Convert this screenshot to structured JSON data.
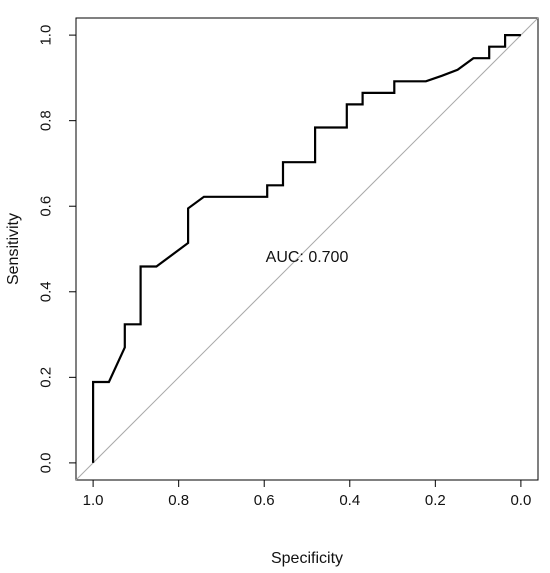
{
  "chart_data": {
    "type": "line",
    "title": "",
    "xlabel": "Specificity",
    "ylabel": "Sensitivity",
    "xlim": [
      1.04,
      -0.04
    ],
    "ylim": [
      -0.04,
      1.04
    ],
    "x_reversed": true,
    "x_ticks": [
      1.0,
      0.8,
      0.6,
      0.4,
      0.2,
      0.0
    ],
    "x_tick_labels": [
      "1.0",
      "0.8",
      "0.6",
      "0.4",
      "0.2",
      "0.0"
    ],
    "y_ticks": [
      0.0,
      0.2,
      0.4,
      0.6,
      0.8,
      1.0
    ],
    "y_tick_labels": [
      "0.0",
      "0.2",
      "0.4",
      "0.6",
      "0.8",
      "1.0"
    ],
    "grid": false,
    "reference_line": {
      "from": [
        1.0,
        0.0
      ],
      "to": [
        0.0,
        1.0
      ],
      "color": "#aaaaaa"
    },
    "annotation": {
      "text": "AUC: 0.700",
      "x": 0.5,
      "y": 0.47
    },
    "line_color": "#000000",
    "series": [
      {
        "x": [
          1.0,
          1.0,
          0.963,
          0.926,
          0.926,
          0.889,
          0.889,
          0.852,
          0.778,
          0.778,
          0.741,
          0.593,
          0.593,
          0.556,
          0.556,
          0.481,
          0.481,
          0.407,
          0.407,
          0.37,
          0.37,
          0.296,
          0.296,
          0.222,
          0.185,
          0.148,
          0.111,
          0.074,
          0.074,
          0.037,
          0.037,
          0.0
        ],
        "y": [
          0.0,
          0.189,
          0.189,
          0.27,
          0.324,
          0.324,
          0.459,
          0.459,
          0.514,
          0.595,
          0.622,
          0.622,
          0.649,
          0.649,
          0.703,
          0.703,
          0.784,
          0.784,
          0.838,
          0.838,
          0.865,
          0.865,
          0.892,
          0.892,
          0.905,
          0.919,
          0.946,
          0.946,
          0.973,
          0.973,
          1.0,
          1.0
        ]
      }
    ]
  }
}
